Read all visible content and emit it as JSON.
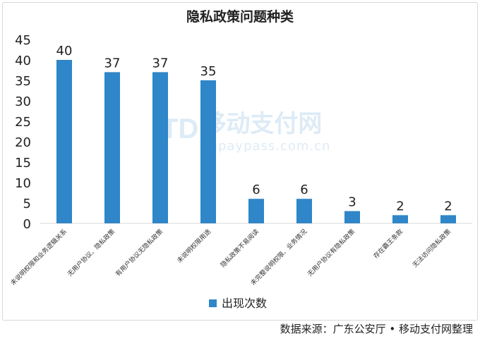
{
  "chart_data": {
    "type": "bar",
    "title": "隐私政策问题种类",
    "categories": [
      "未说明权限和业务逻辑关系",
      "无用户协议、隐私政策",
      "有用户协议无隐私政策",
      "未说明权限用途",
      "隐私政策不易阅读",
      "未完整说明权限、业务情况",
      "无用户协议有隐私政策",
      "存在霸王条款",
      "无法访问隐私政策"
    ],
    "series": [
      {
        "name": "出现次数",
        "values": [
          40,
          37,
          37,
          35,
          6,
          6,
          3,
          2,
          2
        ],
        "color": "#2f86c9"
      }
    ],
    "ylim": [
      0,
      45
    ],
    "yticks": [
      0,
      5,
      10,
      15,
      20,
      25,
      30,
      35,
      40,
      45
    ],
    "xlabel": "",
    "ylabel": "",
    "grid": false,
    "legend": "bottom-center",
    "data_labels": true
  },
  "source": "数据来源：广东公安厅 • 移动支付网整理",
  "watermark": {
    "logo": "TD",
    "cn": "移动支付网",
    "en": "mpaypass.com.cn"
  }
}
